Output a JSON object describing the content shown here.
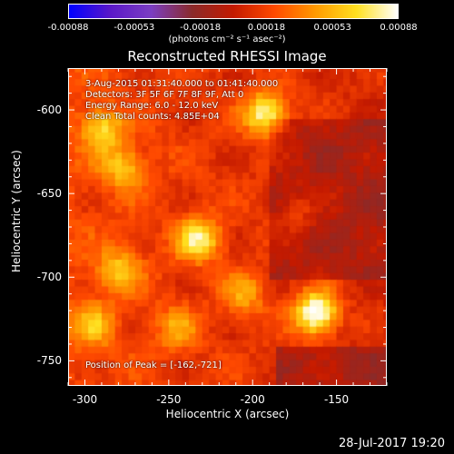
{
  "colorbar": {
    "ticks": [
      "-0.00088",
      "-0.00053",
      "-0.00018",
      "0.00018",
      "0.00053",
      "0.00088"
    ],
    "units": "(photons cm⁻² s⁻¹ asec⁻²)",
    "stops": [
      "#0000ff",
      "#5a18c8",
      "#7b3ec2",
      "#8a2a2a",
      "#c41a00",
      "#ff4a00",
      "#ff9a00",
      "#ffe020",
      "#ffffff"
    ]
  },
  "chart_data": {
    "type": "heatmap",
    "title": "Reconstructed RHESSI Image",
    "xlabel": "Heliocentric X (arcsec)",
    "ylabel": "Heliocentric Y (arcsec)",
    "xlim": [
      -310,
      -120
    ],
    "ylim": [
      -765,
      -575
    ],
    "xticks": [
      -300,
      -250,
      -200,
      -150
    ],
    "yticks": [
      -600,
      -650,
      -700,
      -750
    ],
    "zlim": [
      -0.00088,
      0.00088
    ],
    "peak": [
      -162,
      -721
    ],
    "sources": [
      {
        "x": -162,
        "y": -721,
        "value": 0.00088
      },
      {
        "x": -192,
        "y": -602,
        "value": 0.0007
      },
      {
        "x": -232,
        "y": -677,
        "value": 0.00062
      },
      {
        "x": -290,
        "y": -611,
        "value": 0.00048
      },
      {
        "x": -277,
        "y": -634,
        "value": 0.00042
      },
      {
        "x": -280,
        "y": -695,
        "value": 0.0004
      },
      {
        "x": -295,
        "y": -728,
        "value": 0.00038
      },
      {
        "x": -205,
        "y": -710,
        "value": 0.00035
      },
      {
        "x": -245,
        "y": -730,
        "value": 0.0003
      },
      {
        "x": -175,
        "y": -660,
        "value": 0.0002
      }
    ]
  },
  "annotations": {
    "time": "3-Aug-2015 01:31:40.000 to 01:41:40.000",
    "detectors": "Detectors: 3F 5F 6F 7F 8F 9F, Att 0",
    "energy": "Energy Range: 6.0 - 12.0 keV",
    "method": "Clean     Total counts: 4.85E+04",
    "peak_label": "Position of Peak = [-162,-721]"
  },
  "timestamp": "28-Jul-2017 19:20"
}
